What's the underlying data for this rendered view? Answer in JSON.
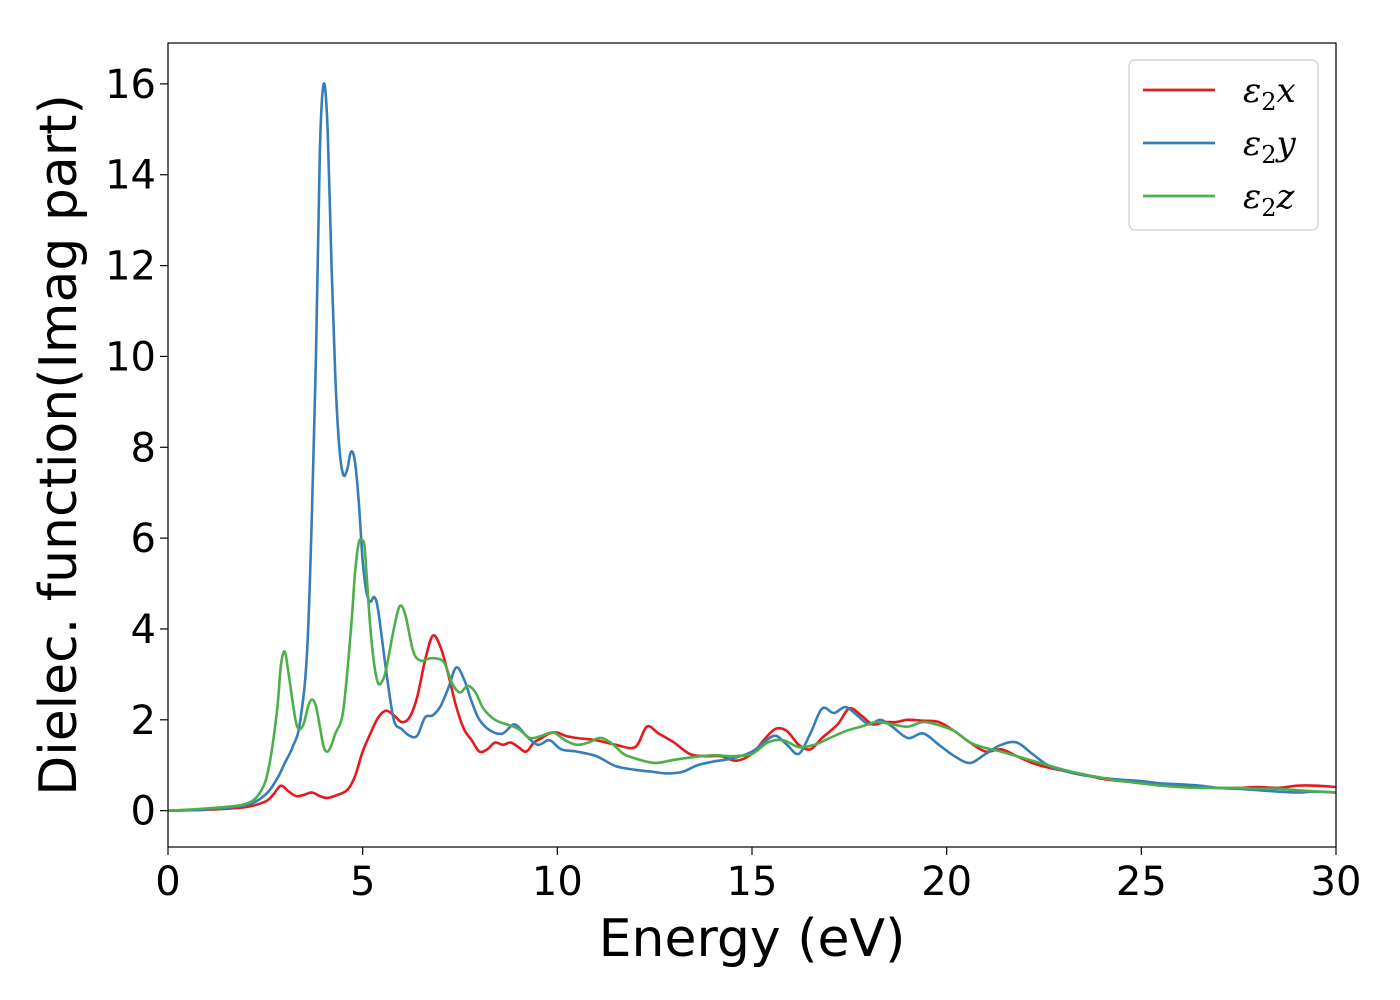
{
  "chart_data": {
    "type": "line",
    "title": "",
    "xlabel": "Energy (eV)",
    "ylabel": "Dielec. function(Imag part)",
    "xlim": [
      0,
      30
    ],
    "ylim": [
      -0.8,
      16.9
    ],
    "xticks": [
      0,
      5,
      10,
      15,
      20,
      25,
      30
    ],
    "yticks": [
      0,
      2,
      4,
      6,
      8,
      10,
      12,
      14,
      16
    ],
    "grid": false,
    "legend_position": "top-right",
    "series": [
      {
        "name": "ε₂x",
        "symbol": "ε",
        "sub": "2",
        "suffix": "x",
        "color": "#e41a1c",
        "x": [
          0,
          1,
          2,
          2.5,
          2.7,
          2.9,
          3.1,
          3.3,
          3.5,
          3.7,
          3.9,
          4.1,
          4.3,
          4.6,
          4.8,
          5.0,
          5.2,
          5.4,
          5.6,
          5.8,
          6.0,
          6.2,
          6.4,
          6.6,
          6.8,
          7.0,
          7.2,
          7.4,
          7.6,
          7.8,
          8.0,
          8.2,
          8.4,
          8.6,
          8.8,
          9.0,
          9.2,
          9.4,
          9.6,
          9.8,
          10.0,
          10.2,
          10.5,
          11.0,
          11.5,
          12.0,
          12.3,
          12.6,
          13.0,
          13.4,
          13.8,
          14.2,
          14.6,
          15.0,
          15.3,
          15.6,
          15.9,
          16.2,
          16.5,
          16.8,
          17.2,
          17.5,
          17.8,
          18.1,
          18.4,
          18.7,
          19.0,
          19.4,
          19.8,
          20.2,
          20.6,
          21.0,
          21.4,
          21.8,
          22.2,
          22.6,
          23.0,
          23.5,
          24.0,
          24.5,
          25.0,
          25.5,
          26.0,
          26.5,
          27.0,
          27.5,
          28.0,
          28.5,
          29.0,
          29.5,
          30.0
        ],
        "y": [
          0.0,
          0.02,
          0.08,
          0.2,
          0.35,
          0.55,
          0.42,
          0.32,
          0.35,
          0.4,
          0.32,
          0.28,
          0.33,
          0.45,
          0.75,
          1.3,
          1.7,
          2.05,
          2.2,
          2.1,
          1.95,
          2.05,
          2.5,
          3.3,
          3.85,
          3.6,
          3.0,
          2.3,
          1.8,
          1.55,
          1.3,
          1.35,
          1.5,
          1.45,
          1.5,
          1.4,
          1.3,
          1.5,
          1.6,
          1.7,
          1.72,
          1.65,
          1.6,
          1.55,
          1.45,
          1.4,
          1.85,
          1.7,
          1.5,
          1.25,
          1.2,
          1.2,
          1.1,
          1.25,
          1.55,
          1.8,
          1.75,
          1.45,
          1.35,
          1.6,
          1.9,
          2.25,
          2.1,
          1.9,
          1.95,
          1.95,
          2.0,
          1.98,
          1.95,
          1.75,
          1.5,
          1.3,
          1.35,
          1.2,
          1.05,
          0.95,
          0.88,
          0.8,
          0.7,
          0.65,
          0.62,
          0.58,
          0.55,
          0.52,
          0.5,
          0.5,
          0.52,
          0.5,
          0.55,
          0.55,
          0.52
        ]
      },
      {
        "name": "ε₂y",
        "symbol": "ε",
        "sub": "2",
        "suffix": "y",
        "color": "#377eb8",
        "x": [
          0,
          1,
          2,
          2.5,
          2.8,
          3.0,
          3.2,
          3.4,
          3.6,
          3.8,
          3.9,
          4.0,
          4.1,
          4.2,
          4.3,
          4.4,
          4.5,
          4.6,
          4.7,
          4.8,
          4.9,
          5.0,
          5.1,
          5.2,
          5.3,
          5.4,
          5.6,
          5.8,
          6.0,
          6.2,
          6.4,
          6.6,
          6.8,
          7.0,
          7.2,
          7.4,
          7.6,
          7.8,
          8.0,
          8.3,
          8.6,
          8.9,
          9.2,
          9.5,
          9.8,
          10.1,
          10.5,
          11.0,
          11.5,
          12.0,
          12.5,
          12.8,
          13.2,
          13.6,
          14.0,
          14.5,
          15.0,
          15.3,
          15.6,
          15.9,
          16.2,
          16.5,
          16.8,
          17.1,
          17.4,
          17.7,
          18.0,
          18.3,
          18.6,
          19.0,
          19.4,
          19.8,
          20.2,
          20.6,
          21.0,
          21.4,
          21.8,
          22.2,
          22.6,
          23.0,
          23.5,
          24.0,
          24.5,
          25.0,
          25.5,
          26.0,
          26.5,
          27.0,
          27.5,
          28.0,
          28.5,
          29.0,
          29.5,
          30.0
        ],
        "y": [
          0.0,
          0.03,
          0.12,
          0.35,
          0.7,
          1.05,
          1.4,
          2.0,
          4.0,
          10.0,
          14.5,
          16.0,
          15.0,
          12.0,
          9.5,
          8.0,
          7.4,
          7.5,
          7.9,
          7.7,
          6.8,
          5.5,
          4.8,
          4.6,
          4.7,
          4.4,
          3.1,
          2.0,
          1.8,
          1.65,
          1.65,
          2.05,
          2.1,
          2.3,
          2.7,
          3.15,
          2.9,
          2.4,
          2.0,
          1.75,
          1.7,
          1.9,
          1.65,
          1.45,
          1.55,
          1.35,
          1.3,
          1.2,
          0.98,
          0.9,
          0.85,
          0.82,
          0.85,
          1.0,
          1.08,
          1.15,
          1.3,
          1.5,
          1.65,
          1.45,
          1.25,
          1.7,
          2.25,
          2.15,
          2.28,
          2.1,
          1.9,
          2.0,
          1.85,
          1.6,
          1.7,
          1.45,
          1.2,
          1.05,
          1.25,
          1.45,
          1.5,
          1.25,
          1.0,
          0.88,
          0.78,
          0.72,
          0.68,
          0.65,
          0.6,
          0.58,
          0.55,
          0.5,
          0.48,
          0.45,
          0.42,
          0.4,
          0.42,
          0.4
        ]
      },
      {
        "name": "ε₂z",
        "symbol": "ε",
        "sub": "2",
        "suffix": "z",
        "color": "#4daf4a",
        "x": [
          0,
          1,
          2,
          2.4,
          2.6,
          2.8,
          2.9,
          3.0,
          3.1,
          3.2,
          3.3,
          3.4,
          3.5,
          3.6,
          3.7,
          3.8,
          3.9,
          4.0,
          4.1,
          4.2,
          4.3,
          4.5,
          4.7,
          4.8,
          4.9,
          5.0,
          5.05,
          5.1,
          5.2,
          5.3,
          5.4,
          5.5,
          5.6,
          5.8,
          5.95,
          6.1,
          6.3,
          6.5,
          6.7,
          6.9,
          7.1,
          7.3,
          7.5,
          7.7,
          7.9,
          8.1,
          8.4,
          8.7,
          9.0,
          9.3,
          9.6,
          9.9,
          10.2,
          10.5,
          10.8,
          11.1,
          11.4,
          11.7,
          12.0,
          12.5,
          13.0,
          13.5,
          14.0,
          14.5,
          15.0,
          15.4,
          15.8,
          16.2,
          16.6,
          17.0,
          17.4,
          17.8,
          18.2,
          18.6,
          19.0,
          19.4,
          19.8,
          20.2,
          20.6,
          21.0,
          21.4,
          21.8,
          22.2,
          22.6,
          23.0,
          23.5,
          24.0,
          24.5,
          25.0,
          25.5,
          26.0,
          26.5,
          27.0,
          27.5,
          28.0,
          28.5,
          29.0,
          29.5,
          30.0
        ],
        "y": [
          0.0,
          0.05,
          0.15,
          0.45,
          1.0,
          2.2,
          3.2,
          3.5,
          3.0,
          2.4,
          1.9,
          1.8,
          1.95,
          2.3,
          2.45,
          2.3,
          1.85,
          1.4,
          1.3,
          1.45,
          1.7,
          2.2,
          4.0,
          5.2,
          5.9,
          5.95,
          5.8,
          5.2,
          4.0,
          3.2,
          2.8,
          2.85,
          3.1,
          4.0,
          4.5,
          4.3,
          3.5,
          3.3,
          3.35,
          3.35,
          3.25,
          2.8,
          2.6,
          2.75,
          2.6,
          2.25,
          2.0,
          1.9,
          1.8,
          1.6,
          1.65,
          1.72,
          1.55,
          1.45,
          1.5,
          1.6,
          1.48,
          1.25,
          1.15,
          1.05,
          1.12,
          1.18,
          1.22,
          1.2,
          1.25,
          1.5,
          1.55,
          1.4,
          1.45,
          1.6,
          1.75,
          1.85,
          1.95,
          1.9,
          1.85,
          1.95,
          1.88,
          1.75,
          1.5,
          1.38,
          1.3,
          1.2,
          1.1,
          1.0,
          0.9,
          0.8,
          0.72,
          0.65,
          0.6,
          0.55,
          0.52,
          0.5,
          0.5,
          0.5,
          0.48,
          0.48,
          0.45,
          0.42,
          0.4
        ]
      }
    ]
  }
}
